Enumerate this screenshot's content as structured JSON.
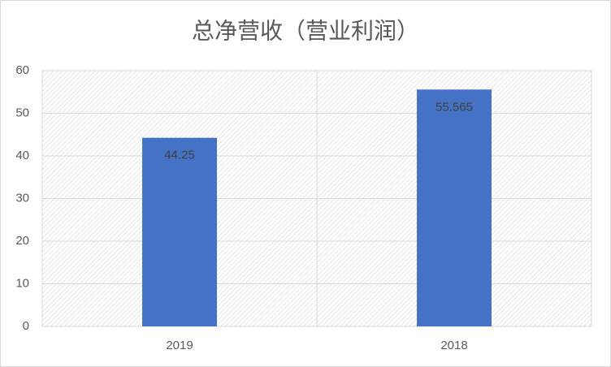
{
  "chart_data": {
    "type": "bar",
    "title": "总净营收（营业利润）",
    "categories": [
      "2019",
      "2018"
    ],
    "values": [
      44.25,
      55.565
    ],
    "color": "#4472c4",
    "ylim": [
      0,
      60
    ],
    "yticks": [
      0,
      10,
      20,
      30,
      40,
      50,
      60
    ],
    "grid": true,
    "data_labels": true
  }
}
